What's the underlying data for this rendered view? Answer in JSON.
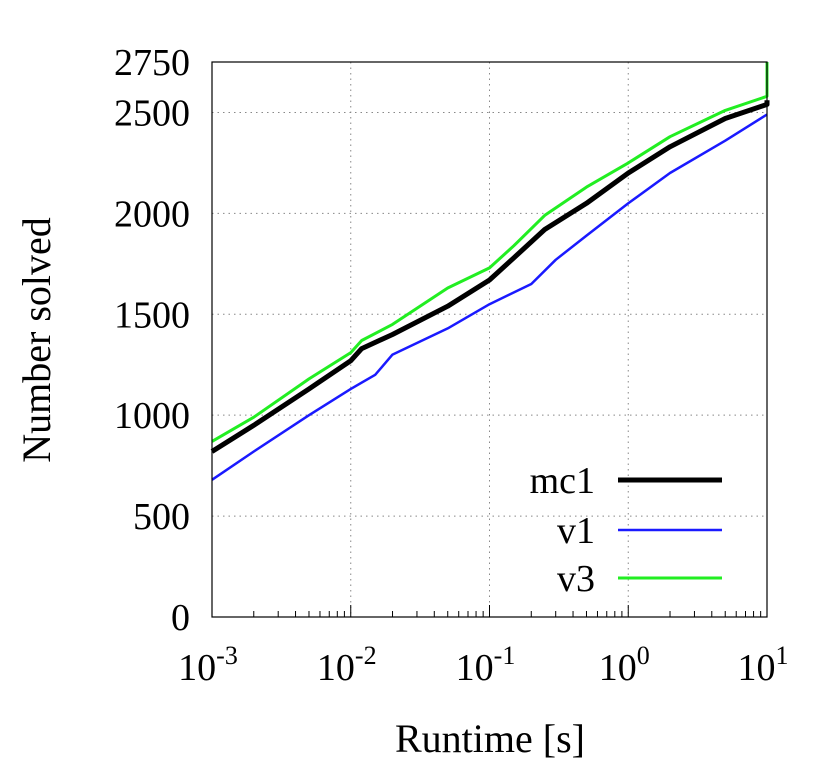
{
  "chart_data": {
    "type": "line",
    "xlabel": "Runtime [s]",
    "ylabel": "Number solved",
    "xscale": "log",
    "xlim": [
      0.001,
      10
    ],
    "ylim": [
      0,
      2750
    ],
    "grid": true,
    "legend_position": "bottom-right",
    "x_ticks": [
      {
        "base": "10",
        "exp": "-3"
      },
      {
        "base": "10",
        "exp": "-2"
      },
      {
        "base": "10",
        "exp": "-1"
      },
      {
        "base": "10",
        "exp": "0"
      },
      {
        "base": "10",
        "exp": "1"
      }
    ],
    "y_ticks": [
      "0",
      "500",
      "1000",
      "1500",
      "2000",
      "2500",
      "2750"
    ],
    "series": [
      {
        "name": "mc1",
        "color": "#000000",
        "x": [
          0.001,
          0.002,
          0.005,
          0.01,
          0.012,
          0.02,
          0.05,
          0.1,
          0.15,
          0.25,
          0.5,
          1,
          2,
          5,
          10,
          10
        ],
        "y": [
          820,
          950,
          1130,
          1270,
          1330,
          1400,
          1540,
          1670,
          1780,
          1920,
          2050,
          2200,
          2330,
          2470,
          2540,
          2560
        ]
      },
      {
        "name": "v1",
        "color": "#1a1aff",
        "x": [
          0.001,
          0.002,
          0.005,
          0.01,
          0.015,
          0.02,
          0.05,
          0.1,
          0.2,
          0.3,
          0.5,
          1,
          2,
          5,
          10
        ],
        "y": [
          680,
          820,
          1000,
          1130,
          1200,
          1300,
          1430,
          1550,
          1650,
          1770,
          1890,
          2050,
          2200,
          2360,
          2490
        ]
      },
      {
        "name": "v3",
        "color": "#22ee22",
        "x": [
          0.001,
          0.002,
          0.005,
          0.01,
          0.012,
          0.02,
          0.05,
          0.1,
          0.15,
          0.25,
          0.5,
          1,
          2,
          5,
          10,
          10
        ],
        "y": [
          870,
          990,
          1180,
          1310,
          1370,
          1450,
          1630,
          1730,
          1840,
          1990,
          2130,
          2250,
          2380,
          2510,
          2580,
          2750
        ]
      }
    ]
  }
}
